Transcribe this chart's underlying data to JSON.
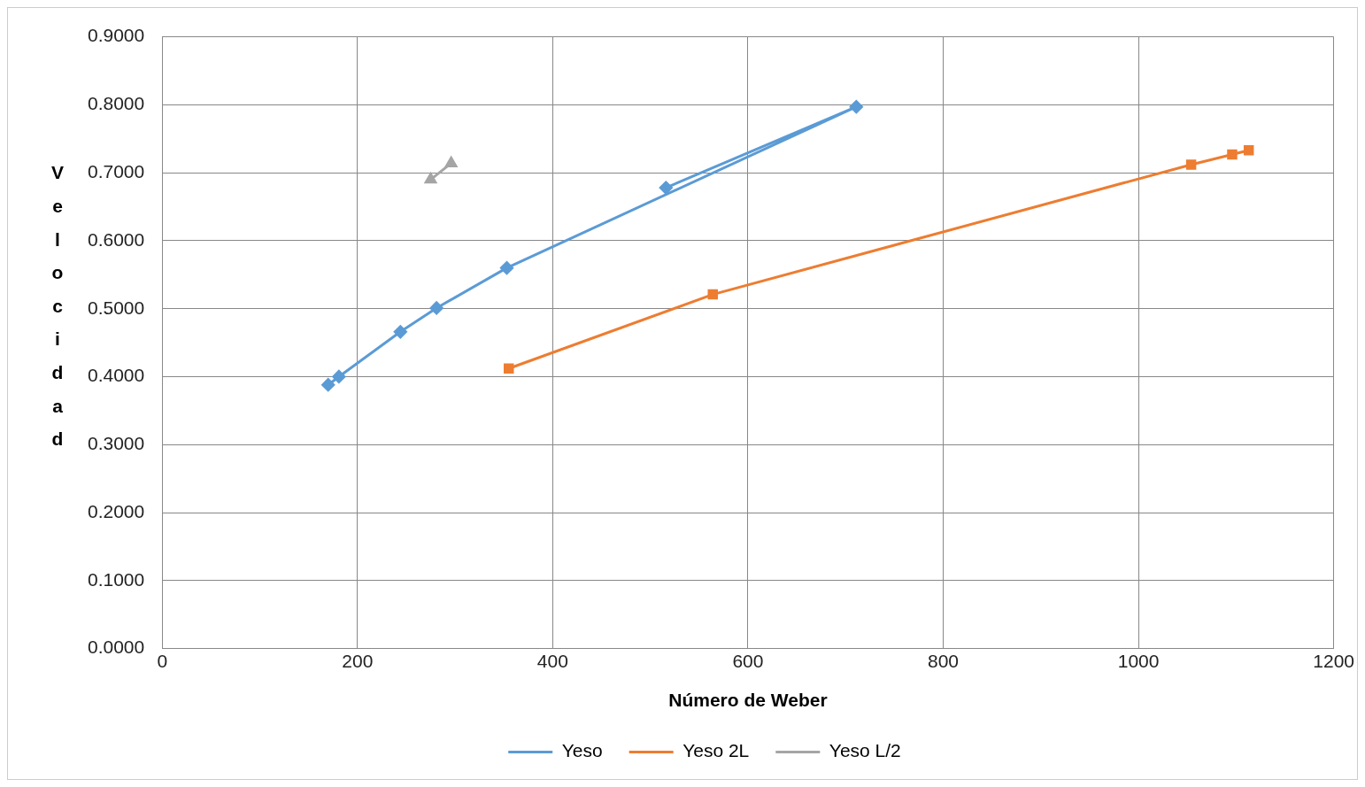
{
  "chart_data": {
    "type": "line",
    "xlabel": "Número de Weber",
    "ylabel": "Velocidad",
    "xlim": [
      0,
      1200
    ],
    "xticks": [
      0,
      200,
      400,
      600,
      800,
      1000,
      1200
    ],
    "ylim": [
      0,
      0.9
    ],
    "yticks": [
      {
        "value": 0,
        "label": "0.0000"
      },
      {
        "value": 0.1,
        "label": "0.1000"
      },
      {
        "value": 0.2,
        "label": "0.2000"
      },
      {
        "value": 0.3,
        "label": "0.3000"
      },
      {
        "value": 0.4,
        "label": "0.4000"
      },
      {
        "value": 0.5,
        "label": "0.5000"
      },
      {
        "value": 0.6,
        "label": "0.6000"
      },
      {
        "value": 0.7,
        "label": "0.7000"
      },
      {
        "value": 0.8,
        "label": "0.8000"
      },
      {
        "value": 0.9,
        "label": "0.9000"
      }
    ],
    "grid": true,
    "legend": "bottom",
    "line_style": "solid",
    "series": [
      {
        "name": "Yeso",
        "color": "#5b9bd5",
        "marker": "diamond",
        "x": [
          516,
          711,
          353,
          281,
          244,
          181,
          170
        ],
        "values": [
          0.678,
          0.797,
          0.56,
          0.501,
          0.466,
          0.4,
          0.388
        ]
      },
      {
        "name": "Yeso 2L",
        "color": "#ed7d31",
        "marker": "square",
        "x": [
          355,
          564,
          1054,
          1096,
          1113
        ],
        "values": [
          0.412,
          0.521,
          0.712,
          0.727,
          0.733
        ]
      },
      {
        "name": "Yeso L/2",
        "color": "#a5a5a5",
        "marker": "triangle",
        "x": [
          296,
          275
        ],
        "values": [
          0.714,
          0.69
        ]
      }
    ]
  }
}
